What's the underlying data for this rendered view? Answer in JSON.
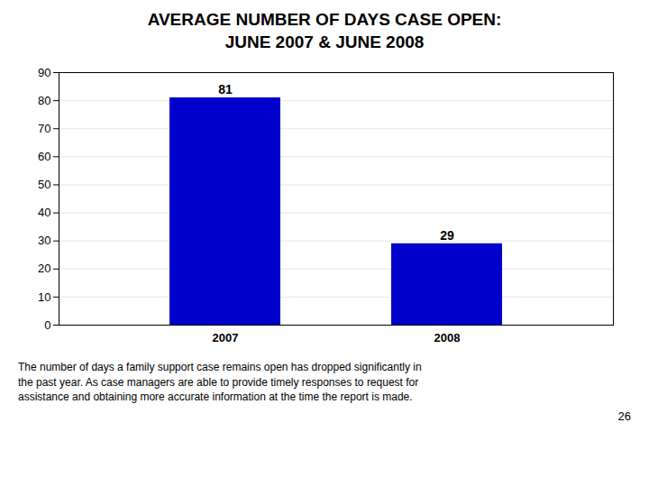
{
  "chart_data": {
    "type": "bar",
    "title": "AVERAGE NUMBER OF DAYS CASE OPEN:",
    "subtitle": "JUNE 2007 & JUNE 2008",
    "categories": [
      "2007",
      "2008"
    ],
    "values": [
      81,
      29
    ],
    "color": "#0000CC",
    "ylim": [
      0,
      90
    ],
    "yticks": [
      0,
      10,
      20,
      30,
      40,
      50,
      60,
      70,
      80,
      90
    ],
    "grid": true,
    "data_labels": true,
    "annotations": [
      "The number of days a family support case remains open has dropped significantly in\nthe past year.  As case managers are able to provide timely responses to request for\nassistance and obtaining more accurate information at the time the report is made.",
      "26"
    ]
  }
}
